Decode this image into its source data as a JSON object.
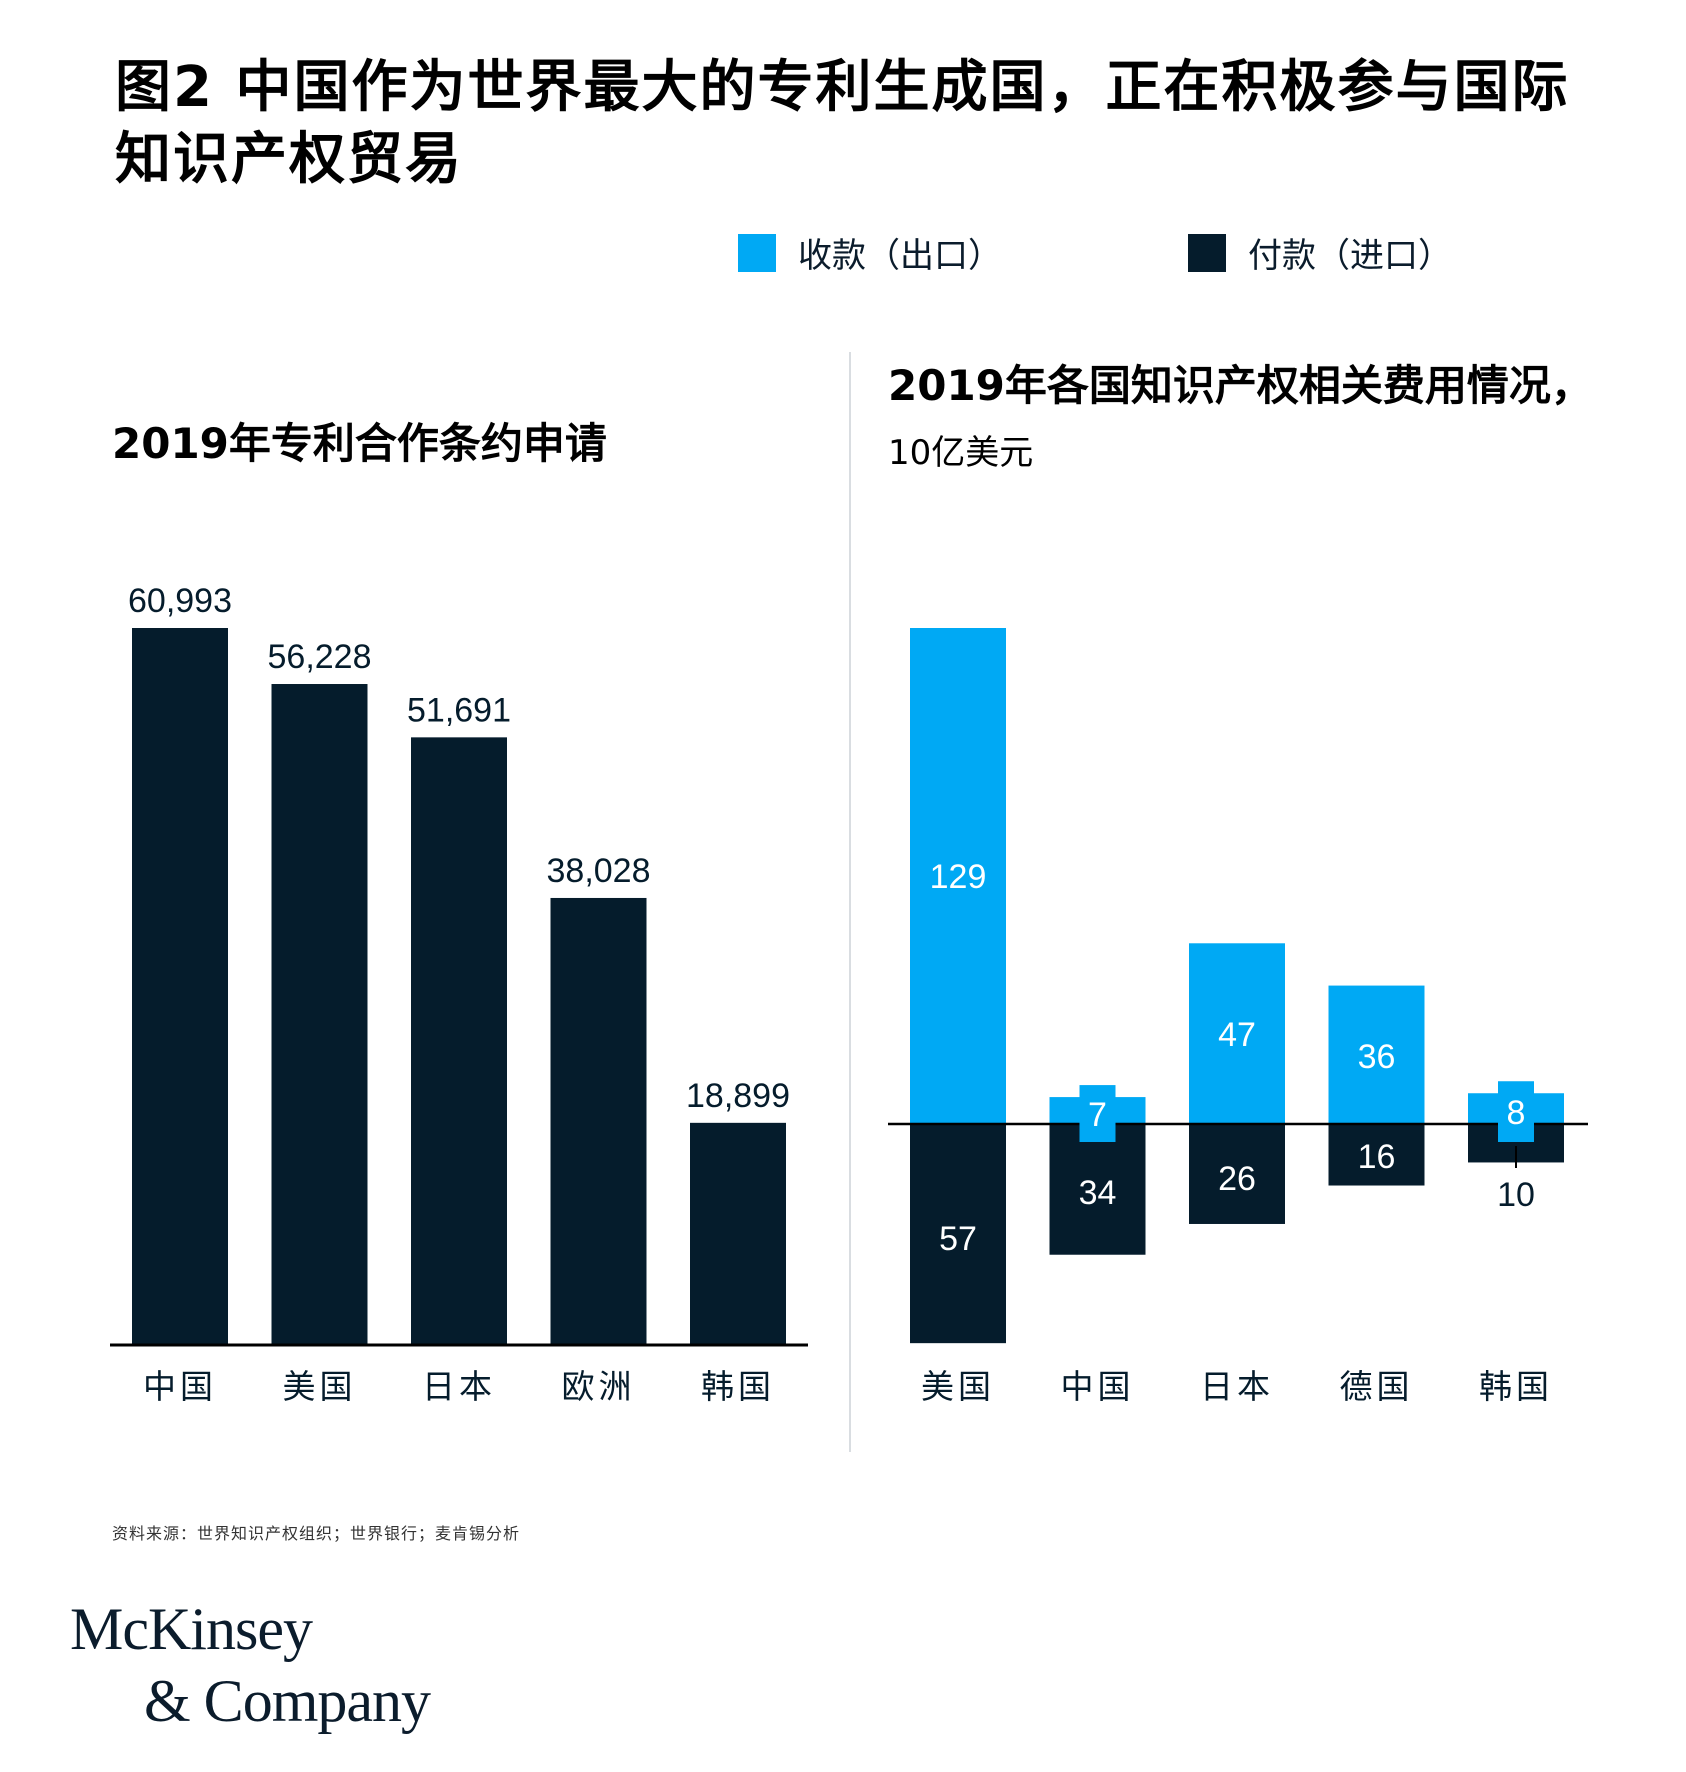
{
  "title": "图2 中国作为世界最大的专利生成国，正在积极参与国际知识产权贸易",
  "legend": [
    {
      "label": "收款（出口）",
      "color": "#00a9f4"
    },
    {
      "label": "付款（进口）",
      "color": "#051c2c"
    }
  ],
  "left_subtitle": "2019年专利合作条约申请",
  "right_subtitle": "2019年各国知识产权相关费用情况，",
  "right_subtitle_unit": "10亿美元",
  "source": "资料来源：世界知识产权组织；世界银行；麦肯锡分析",
  "logo": {
    "line1": "McKinsey",
    "line2": "& Company"
  },
  "colors": {
    "dark": "#051c2c",
    "blue": "#00a9f4",
    "axis": "#000000"
  },
  "chart_data": [
    {
      "type": "bar",
      "title": "2019年专利合作条约申请",
      "categories": [
        "中国",
        "美国",
        "日本",
        "欧洲",
        "韩国"
      ],
      "values": [
        60993,
        56228,
        51691,
        38028,
        18899
      ],
      "value_labels": [
        "60,993",
        "56,228",
        "51,691",
        "38,028",
        "18,899"
      ],
      "color": "#051c2c",
      "ylim": [
        0,
        60993
      ],
      "grid": false
    },
    {
      "type": "bar",
      "title": "2019年各国知识产权相关费用情况",
      "unit": "10亿美元",
      "categories": [
        "美国",
        "中国",
        "日本",
        "德国",
        "韩国"
      ],
      "series": [
        {
          "name": "收款（出口）",
          "values": [
            129,
            7,
            47,
            36,
            8
          ],
          "color": "#00a9f4"
        },
        {
          "name": "付款（进口）",
          "values": [
            57,
            34,
            26,
            16,
            10
          ],
          "color": "#051c2c"
        }
      ],
      "ylim": [
        -57,
        129
      ],
      "grid": false,
      "legend": "top"
    }
  ]
}
